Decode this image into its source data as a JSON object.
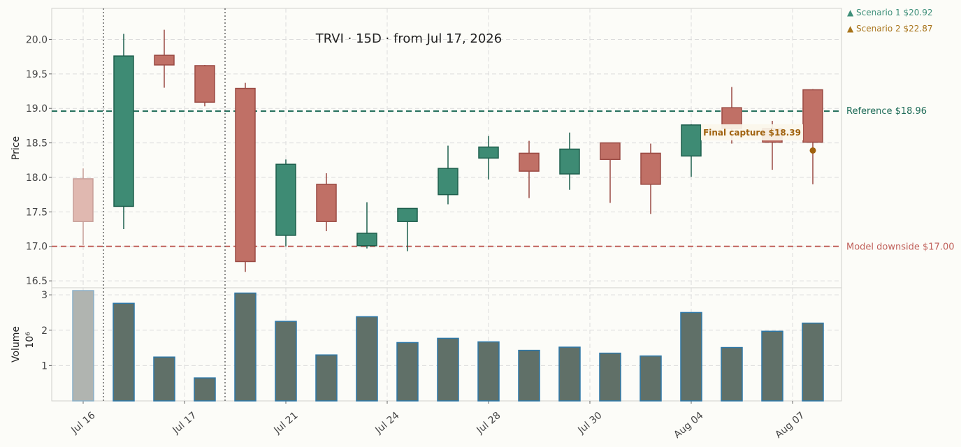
{
  "chart_data": {
    "type": "candlestick",
    "title": "TRVI  ·  15D  ·  from Jul 17, 2026",
    "ylabel": "Price",
    "volume_label": "Volume",
    "volume_unit": "10⁶",
    "ylim": [
      16.4,
      20.45
    ],
    "volume_ylim": [
      0,
      3.2
    ],
    "y_ticks": [
      16.5,
      17.0,
      17.5,
      18.0,
      18.5,
      19.0,
      19.5,
      20.0
    ],
    "volume_ticks": [
      1,
      2,
      3
    ],
    "x_tick_labels": [
      {
        "index": 0,
        "label": "Jul 16"
      },
      {
        "index": 2.5,
        "label": "Jul 17"
      },
      {
        "index": 5,
        "label": "Jul 21"
      },
      {
        "index": 7.5,
        "label": "Jul 24"
      },
      {
        "index": 10,
        "label": "Jul 28"
      },
      {
        "index": 12.5,
        "label": "Jul 30"
      },
      {
        "index": 15,
        "label": "Aug 04"
      },
      {
        "index": 17.5,
        "label": "Aug 07"
      }
    ],
    "candles": [
      {
        "open": 17.98,
        "high": 18.13,
        "low": 17.02,
        "close": 17.36,
        "volume": 3.12,
        "context": true
      },
      {
        "open": 17.58,
        "high": 20.08,
        "low": 17.25,
        "close": 19.76,
        "volume": 2.76
      },
      {
        "open": 19.77,
        "high": 20.14,
        "low": 19.3,
        "close": 19.63,
        "volume": 1.24
      },
      {
        "open": 19.62,
        "high": 19.63,
        "low": 19.03,
        "close": 19.09,
        "volume": 0.65
      },
      {
        "open": 19.29,
        "high": 19.37,
        "low": 16.63,
        "close": 16.78,
        "volume": 3.05
      },
      {
        "open": 17.16,
        "high": 18.26,
        "low": 17.0,
        "close": 18.19,
        "volume": 2.25
      },
      {
        "open": 17.9,
        "high": 18.06,
        "low": 17.22,
        "close": 17.36,
        "volume": 1.3
      },
      {
        "open": 17.01,
        "high": 17.64,
        "low": 16.97,
        "close": 17.19,
        "volume": 2.38
      },
      {
        "open": 17.36,
        "high": 17.55,
        "low": 16.93,
        "close": 17.55,
        "volume": 1.65
      },
      {
        "open": 17.75,
        "high": 18.46,
        "low": 17.61,
        "close": 18.13,
        "volume": 1.77
      },
      {
        "open": 18.28,
        "high": 18.6,
        "low": 17.97,
        "close": 18.44,
        "volume": 1.67
      },
      {
        "open": 18.35,
        "high": 18.53,
        "low": 17.7,
        "close": 18.09,
        "volume": 1.43
      },
      {
        "open": 18.05,
        "high": 18.65,
        "low": 17.82,
        "close": 18.41,
        "volume": 1.52
      },
      {
        "open": 18.5,
        "high": 18.5,
        "low": 17.63,
        "close": 18.26,
        "volume": 1.35
      },
      {
        "open": 18.35,
        "high": 18.49,
        "low": 17.47,
        "close": 17.9,
        "volume": 1.27
      },
      {
        "open": 18.31,
        "high": 18.77,
        "low": 18.01,
        "close": 18.76,
        "volume": 2.5
      },
      {
        "open": 19.01,
        "high": 19.31,
        "low": 18.49,
        "close": 18.71,
        "volume": 1.51
      },
      {
        "open": 18.71,
        "high": 18.82,
        "low": 18.11,
        "close": 18.51,
        "volume": 1.97
      },
      {
        "open": 19.27,
        "high": 19.28,
        "low": 17.9,
        "close": 18.51,
        "volume": 2.2
      }
    ],
    "vertical_markers": [
      0.5,
      3.5
    ],
    "reference": {
      "label": "Reference $18.96",
      "value": 18.96,
      "color": "#1d6b57"
    },
    "downside": {
      "label": "Model downside $17.00",
      "value": 17.0,
      "color": "#c0605a"
    },
    "scenarios": [
      {
        "label": "▲ Scenario 1 $20.92",
        "color": "#3e8f79"
      },
      {
        "label": "▲ Scenario 2 $22.87",
        "color": "#a8741a"
      }
    ],
    "final_capture": {
      "label": "Final capture $18.39",
      "value": 18.39,
      "index": 18,
      "color": "#a0620e"
    },
    "colors": {
      "up": "#3e8b74",
      "up_edge": "#1d5e4c",
      "down": "#c07066",
      "down_edge": "#9a4a43",
      "context_fill": "#e0b8b0",
      "context_edge": "#c79e98",
      "volume": "#607068",
      "volume_edge": "#2e78a8",
      "volume_context": "#b0b4b0",
      "volume_context_edge": "#8ab0c8"
    }
  }
}
